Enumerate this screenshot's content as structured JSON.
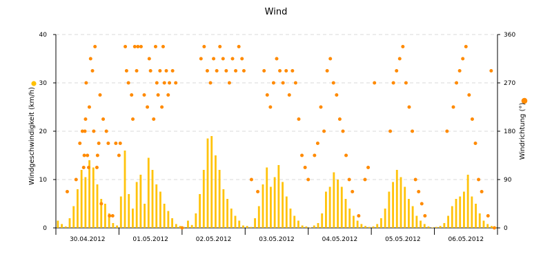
{
  "chart_data": {
    "type": "scatter",
    "title": "Wind",
    "y_left_label": "Windgeschwindigkeit (km/h)",
    "y_right_label": "Windrichtung (°)",
    "y_left_ticks": [
      "0",
      "10",
      "20",
      "30",
      "40"
    ],
    "y_right_ticks": [
      "0",
      "90",
      "180",
      "270",
      "360"
    ],
    "x_tick_labels": [
      "30.04.2012",
      "01.05.2012",
      "02.05.2012",
      "03.05.2012",
      "04.05.2012",
      "05.05.2012",
      "06.05.2012"
    ],
    "ylim_left": [
      0,
      40
    ],
    "ylim_right": [
      0,
      360
    ],
    "xlim_days": [
      0,
      7
    ],
    "grid": "horizontal dashed",
    "colors": {
      "speed": "#FFC000",
      "direction": "#FF8A00",
      "grid": "#D8D8D8",
      "axis": "#000000"
    },
    "series": [
      {
        "name": "Windgeschwindigkeit",
        "type": "bar",
        "axis": "left",
        "note": "speed as thin vertical bars, roughly 2-hourly average across each day",
        "values_by_day": [
          [
            1.5,
            0.8,
            0.3,
            2.0,
            4.5,
            8.0,
            12.0,
            10.5,
            14.0,
            12.5,
            9.0,
            6.0,
            5.0,
            3.0,
            1.0,
            0.5
          ],
          [
            6.5,
            16.0,
            7.0,
            4.0,
            9.5,
            11.0,
            5.0,
            14.5,
            12.0,
            9.0,
            7.5,
            5.0,
            3.5,
            2.0,
            0.8,
            0.4
          ],
          [
            0.2,
            1.5,
            0.6,
            3.0,
            7.0,
            12.0,
            18.5,
            19.0,
            15.0,
            12.0,
            8.0,
            6.0,
            4.0,
            2.5,
            1.5,
            0.5
          ],
          [
            0.4,
            0.2,
            2.0,
            4.5,
            9.0,
            12.5,
            8.5,
            10.5,
            13.0,
            9.5,
            6.5,
            4.0,
            2.5,
            1.5,
            0.5,
            0.3
          ],
          [
            0.1,
            0.5,
            1.0,
            3.0,
            7.5,
            8.5,
            11.5,
            10.0,
            8.5,
            6.0,
            4.0,
            2.5,
            1.5,
            0.8,
            0.4,
            0.2
          ],
          [
            0.3,
            0.8,
            2.0,
            4.0,
            7.5,
            9.5,
            12.0,
            10.5,
            8.5,
            6.0,
            4.5,
            2.5,
            1.5,
            0.8,
            0.3,
            0.1
          ],
          [
            0.2,
            0.4,
            1.0,
            2.5,
            4.5,
            6.0,
            6.5,
            7.5,
            11.0,
            6.5,
            5.0,
            3.0,
            1.5,
            0.8,
            0.4,
            0.2
          ]
        ]
      },
      {
        "name": "Windrichtung",
        "type": "scatter",
        "axis": "right",
        "note": "direction scatter, approximate points (day offset, degrees)",
        "points": [
          [
            0.18,
            67.5
          ],
          [
            0.32,
            90
          ],
          [
            0.38,
            157.5
          ],
          [
            0.42,
            180
          ],
          [
            0.44,
            112.5
          ],
          [
            0.45,
            135
          ],
          [
            0.46,
            180
          ],
          [
            0.47,
            202.5
          ],
          [
            0.48,
            270
          ],
          [
            0.5,
            135
          ],
          [
            0.52,
            112.5
          ],
          [
            0.53,
            225
          ],
          [
            0.55,
            315
          ],
          [
            0.58,
            292.5
          ],
          [
            0.6,
            180
          ],
          [
            0.62,
            337.5
          ],
          [
            0.65,
            112.5
          ],
          [
            0.66,
            135
          ],
          [
            0.68,
            157.5
          ],
          [
            0.7,
            247.5
          ],
          [
            0.72,
            45
          ],
          [
            0.75,
            202.5
          ],
          [
            0.8,
            180
          ],
          [
            0.83,
            157.5
          ],
          [
            0.85,
            22.5
          ],
          [
            0.9,
            22.5
          ],
          [
            0.95,
            157.5
          ],
          [
            1.0,
            135
          ],
          [
            1.02,
            157.5
          ],
          [
            1.1,
            337.5
          ],
          [
            1.12,
            292.5
          ],
          [
            1.15,
            270
          ],
          [
            1.2,
            247.5
          ],
          [
            1.22,
            202.5
          ],
          [
            1.25,
            337.5
          ],
          [
            1.28,
            292.5
          ],
          [
            1.3,
            337.5
          ],
          [
            1.35,
            337.5
          ],
          [
            1.4,
            247.5
          ],
          [
            1.45,
            225
          ],
          [
            1.48,
            315
          ],
          [
            1.5,
            292.5
          ],
          [
            1.55,
            202.5
          ],
          [
            1.58,
            337.5
          ],
          [
            1.6,
            270
          ],
          [
            1.62,
            247.5
          ],
          [
            1.65,
            292.5
          ],
          [
            1.68,
            225
          ],
          [
            1.7,
            337.5
          ],
          [
            1.72,
            270
          ],
          [
            1.75,
            292.5
          ],
          [
            1.78,
            247.5
          ],
          [
            1.8,
            270
          ],
          [
            1.85,
            292.5
          ],
          [
            1.9,
            270
          ],
          [
            2.0,
            0
          ],
          [
            2.3,
            315
          ],
          [
            2.35,
            337.5
          ],
          [
            2.4,
            292.5
          ],
          [
            2.45,
            270
          ],
          [
            2.5,
            315
          ],
          [
            2.55,
            292.5
          ],
          [
            2.6,
            337.5
          ],
          [
            2.65,
            315
          ],
          [
            2.7,
            292.5
          ],
          [
            2.75,
            270
          ],
          [
            2.8,
            315
          ],
          [
            2.85,
            292.5
          ],
          [
            2.9,
            337.5
          ],
          [
            2.95,
            315
          ],
          [
            2.98,
            292.5
          ],
          [
            3.1,
            90
          ],
          [
            3.2,
            67.5
          ],
          [
            3.3,
            292.5
          ],
          [
            3.35,
            247.5
          ],
          [
            3.4,
            225
          ],
          [
            3.45,
            270
          ],
          [
            3.5,
            315
          ],
          [
            3.55,
            292.5
          ],
          [
            3.6,
            270
          ],
          [
            3.65,
            292.5
          ],
          [
            3.7,
            247.5
          ],
          [
            3.75,
            292.5
          ],
          [
            3.8,
            270
          ],
          [
            3.85,
            202.5
          ],
          [
            3.9,
            135
          ],
          [
            3.95,
            112.5
          ],
          [
            4.0,
            90
          ],
          [
            4.1,
            135
          ],
          [
            4.15,
            157.5
          ],
          [
            4.2,
            225
          ],
          [
            4.25,
            180
          ],
          [
            4.3,
            292.5
          ],
          [
            4.35,
            315
          ],
          [
            4.4,
            270
          ],
          [
            4.45,
            247.5
          ],
          [
            4.5,
            202.5
          ],
          [
            4.55,
            180
          ],
          [
            4.6,
            135
          ],
          [
            4.65,
            90
          ],
          [
            4.7,
            67.5
          ],
          [
            4.8,
            22.5
          ],
          [
            4.9,
            90
          ],
          [
            4.95,
            112.5
          ],
          [
            5.05,
            270
          ],
          [
            5.3,
            180
          ],
          [
            5.35,
            270
          ],
          [
            5.4,
            292.5
          ],
          [
            5.45,
            315
          ],
          [
            5.5,
            337.5
          ],
          [
            5.55,
            270
          ],
          [
            5.6,
            225
          ],
          [
            5.65,
            180
          ],
          [
            5.7,
            90
          ],
          [
            5.75,
            67.5
          ],
          [
            5.8,
            45
          ],
          [
            5.85,
            22.5
          ],
          [
            6.2,
            180
          ],
          [
            6.3,
            225
          ],
          [
            6.35,
            270
          ],
          [
            6.4,
            292.5
          ],
          [
            6.45,
            315
          ],
          [
            6.5,
            337.5
          ],
          [
            6.55,
            247.5
          ],
          [
            6.6,
            202.5
          ],
          [
            6.65,
            157.5
          ],
          [
            6.7,
            90
          ],
          [
            6.75,
            67.5
          ],
          [
            6.85,
            22.5
          ],
          [
            6.9,
            292.5
          ],
          [
            6.95,
            0
          ]
        ]
      }
    ],
    "legend": [
      {
        "label": "Windgeschwindigkeit (km/h)",
        "color": "#FFC000"
      },
      {
        "label": "Windrichtung (°)",
        "color": "#FF8A00"
      }
    ]
  }
}
